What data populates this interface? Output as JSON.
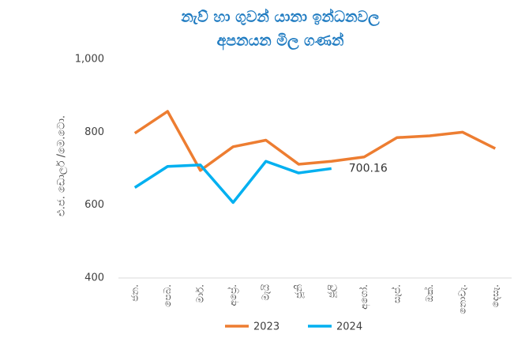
{
  "chart_data": {
    "type": "line",
    "title": [
      "නැව් හා ගුවන් යානා ඉන්ධනවල",
      "අපනයන මිල ගණන්"
    ],
    "y_label": "එ.ජ. ඩොලර් /මෙ.ටො.",
    "categories": [
      "ජන.",
      "පෙබ.",
      "මාර්.",
      "අප්‍රේ.",
      "මැයි",
      "ජූනි",
      "ජූලි",
      "අගෝ.",
      "සැප්.",
      "ඔක්.",
      "නොවැ.",
      "දෙසැ."
    ],
    "series": [
      {
        "name": "2023",
        "color": "#ed7d31",
        "values": [
          797,
          857,
          695,
          760,
          778,
          712,
          720,
          732,
          785,
          790,
          800,
          755
        ]
      },
      {
        "name": "2024",
        "color": "#00b0f0",
        "values": [
          648,
          706,
          710,
          607,
          720,
          688,
          700.16,
          null,
          null,
          null,
          null,
          null
        ],
        "value_labels": [
          null,
          null,
          null,
          null,
          null,
          null,
          "700.16",
          null,
          null,
          null,
          null,
          null
        ]
      }
    ],
    "ylim": [
      400,
      1000
    ],
    "yticks": [
      400,
      600,
      800,
      {
        "value": 1000,
        "label": "1,000"
      }
    ],
    "grid": false,
    "legend": "bottom"
  }
}
